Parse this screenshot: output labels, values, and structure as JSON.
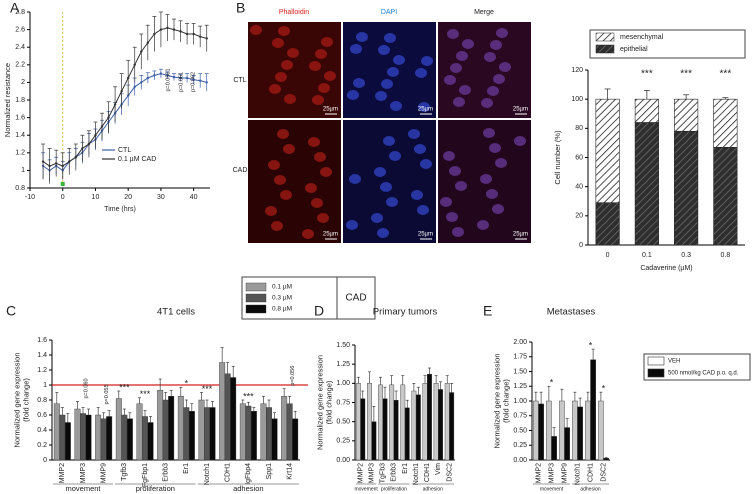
{
  "figure": {
    "panel_labels": [
      "A",
      "B",
      "C",
      "D",
      "E"
    ],
    "microscopy": {
      "channels": [
        "Phalloidin",
        "DAPI",
        "Merge"
      ],
      "conditions": [
        "CTL",
        "CAD"
      ],
      "scale_bars": [
        "25µm",
        "25µm",
        "25µm",
        "25µm",
        "25µm",
        "25µm"
      ]
    }
  },
  "chart_data": [
    {
      "type": "line",
      "xlabel": "Time (hrs)",
      "ylabel": "Normalized resistance",
      "xlim": [
        -10,
        45
      ],
      "ylim": [
        0.8,
        2.8
      ],
      "xticks": [
        -10,
        0,
        10,
        20,
        30,
        40
      ],
      "yticks": [
        0.8,
        1,
        1.2,
        1.4,
        1.6,
        1.8,
        2,
        2.2,
        2.4,
        2.6,
        2.8
      ],
      "x": [
        -6,
        -4,
        -2,
        0,
        2,
        4,
        6,
        8,
        10,
        12,
        14,
        16,
        18,
        20,
        22,
        24,
        26,
        28,
        30,
        32,
        34,
        36,
        38,
        40,
        42,
        44
      ],
      "series": [
        {
          "name": "CTL",
          "color": "#3b5ea8",
          "values": [
            1.05,
            1.0,
            1.05,
            1.0,
            1.1,
            1.15,
            1.2,
            1.3,
            1.35,
            1.45,
            1.55,
            1.65,
            1.75,
            1.85,
            1.95,
            2.0,
            2.05,
            2.08,
            2.1,
            2.08,
            2.06,
            2.05,
            2.05,
            2.03,
            2.02,
            2.0
          ],
          "errors": [
            0.15,
            0.12,
            0.1,
            0.1,
            0.1,
            0.1,
            0.12,
            0.12,
            0.12,
            0.12,
            0.12,
            0.12,
            0.12,
            0.12,
            0.1,
            0.08,
            0.06,
            0.05,
            0.05,
            0.04,
            0.04,
            0.04,
            0.05,
            0.05,
            0.08,
            0.1
          ]
        },
        {
          "name": "0.1 µM CAD",
          "color": "#333333",
          "values": [
            1.1,
            1.05,
            1.08,
            1.05,
            1.1,
            1.15,
            1.25,
            1.3,
            1.4,
            1.5,
            1.6,
            1.75,
            1.9,
            2.05,
            2.2,
            2.35,
            2.45,
            2.55,
            2.6,
            2.62,
            2.6,
            2.58,
            2.55,
            2.55,
            2.52,
            2.5
          ],
          "errors": [
            0.2,
            0.2,
            0.15,
            0.15,
            0.15,
            0.15,
            0.15,
            0.15,
            0.15,
            0.15,
            0.18,
            0.2,
            0.2,
            0.2,
            0.2,
            0.2,
            0.2,
            0.2,
            0.2,
            0.15,
            0.12,
            0.12,
            0.12,
            0.12,
            0.12,
            0.15
          ]
        }
      ],
      "annotations": [
        "p=0.0501",
        "p=0.061",
        "p=0.062"
      ]
    },
    {
      "type": "stacked_bar",
      "xlabel": "Cadaverine (µM)",
      "ylabel": "Cell number (%)",
      "categories": [
        "0",
        "0.1",
        "0.3",
        "0.8"
      ],
      "ylim": [
        0,
        120
      ],
      "yticks": [
        0,
        20,
        40,
        60,
        80,
        100,
        120
      ],
      "series": [
        {
          "name": "epithelial",
          "color": "#2e2e2e",
          "hatch_color": "#6a6a6a",
          "values": [
            29,
            84,
            78,
            67
          ]
        },
        {
          "name": "mesenchymal",
          "color": "#ffffff",
          "hatch_color": "#222222",
          "values": [
            71,
            16,
            22,
            33
          ],
          "errors": [
            7,
            6,
            3,
            1
          ]
        }
      ],
      "annotations": [
        null,
        "***",
        "***",
        "***"
      ]
    },
    {
      "type": "bar",
      "title": "4T1 cells",
      "ylabel": [
        "Normalized gene expression",
        "(fold change)"
      ],
      "ylim": [
        0,
        1.6
      ],
      "yticks": [
        0,
        0.2,
        0.4,
        0.6,
        0.8,
        1,
        1.2,
        1.4,
        1.6
      ],
      "reference_line": 1,
      "reference_color": "#d0211c",
      "legend_title": "CAD",
      "groups": [
        {
          "name": "movement",
          "categories": [
            "MMP2",
            "MMP3",
            "MMP9"
          ],
          "annotations": [
            null,
            "p=0.060",
            "p=0.055"
          ]
        },
        {
          "name": "proliferation",
          "categories": [
            "Tgfb3",
            "FgFbp1",
            "Erbb3",
            "Er1"
          ],
          "annotations": [
            "***",
            "***",
            null,
            "*"
          ]
        },
        {
          "name": "adhesion",
          "categories": [
            "Notch1",
            "CDH1",
            "IgFbp4",
            "Spp1",
            "Krt14"
          ],
          "annotations": [
            "***",
            null,
            "***",
            null,
            "p=0.056"
          ]
        }
      ],
      "series": [
        {
          "name": "0.1 µM",
          "color": "#9a9a9a",
          "values": [
            0.75,
            0.68,
            0.6,
            0.82,
            0.75,
            0.93,
            0.85,
            0.8,
            1.3,
            0.75,
            0.75,
            0.85
          ],
          "errors": [
            0.15,
            0.1,
            0.1,
            0.1,
            0.08,
            0.15,
            0.12,
            0.1,
            0.2,
            0.05,
            0.1,
            0.1
          ]
        },
        {
          "name": "0.3 µM",
          "color": "#555555",
          "values": [
            0.6,
            0.62,
            0.55,
            0.6,
            0.58,
            0.8,
            0.7,
            0.7,
            1.15,
            0.72,
            0.7,
            0.75
          ],
          "errors": [
            0.1,
            0.08,
            0.08,
            0.08,
            0.08,
            0.1,
            0.1,
            0.1,
            0.15,
            0.05,
            0.1,
            0.1
          ]
        },
        {
          "name": "0.8 µM",
          "color": "#0a0a0a",
          "values": [
            0.5,
            0.6,
            0.58,
            0.55,
            0.5,
            0.85,
            0.65,
            0.7,
            1.1,
            0.65,
            0.55,
            0.55
          ],
          "errors": [
            0.12,
            0.08,
            0.08,
            0.08,
            0.08,
            0.08,
            0.1,
            0.08,
            0.15,
            0.05,
            0.08,
            0.1
          ]
        }
      ]
    },
    {
      "type": "bar",
      "title": "Primary tumors",
      "ylabel": [
        "Normalized gene expression",
        "(fold change)"
      ],
      "ylim": [
        0,
        1.5
      ],
      "yticks": [
        {
          "value": 0,
          "label": "0.00"
        },
        {
          "value": 0.25,
          "label": "0.25"
        },
        {
          "value": 0.5,
          "label": "0.50"
        },
        {
          "value": 0.75,
          "label": "0.75"
        },
        {
          "value": 1,
          "label": "1.00"
        },
        {
          "value": 1.25,
          "label": "1.25"
        },
        {
          "value": 1.5,
          "label": "1.50"
        }
      ],
      "groups": [
        {
          "name": "movement",
          "categories": [
            "MMP2",
            "MMP3"
          ]
        },
        {
          "name": "proliferation",
          "categories": [
            "TgFb3",
            "Erbb3",
            "Er1"
          ]
        },
        {
          "name": "adhesion",
          "categories": [
            "Notch1",
            "CDH1",
            "Vim",
            "DSC2"
          ]
        }
      ],
      "series": [
        {
          "color": "#c8c8c8",
          "values": [
            1.0,
            1.0,
            0.98,
            0.98,
            0.98,
            0.9,
            1.0,
            1.0,
            1.0
          ],
          "errors": [
            0.08,
            0.15,
            0.1,
            0.12,
            0.12,
            0.1,
            0.1,
            0.1,
            0.1
          ]
        },
        {
          "color": "#0a0a0a",
          "values": [
            0.8,
            0.5,
            0.8,
            0.78,
            0.68,
            0.85,
            1.12,
            0.92,
            0.88
          ],
          "errors": [
            0.1,
            0.2,
            0.15,
            0.12,
            0.1,
            0.1,
            0.08,
            0.1,
            0.12
          ]
        }
      ]
    },
    {
      "type": "bar",
      "title": "Metastases",
      "ylabel": [
        "Normalized gene expression",
        "(fold change)"
      ],
      "ylim": [
        0,
        2
      ],
      "yticks": [
        {
          "value": 0,
          "label": "0.00"
        },
        {
          "value": 0.25,
          "label": "0.25"
        },
        {
          "value": 0.5,
          "label": "0.50"
        },
        {
          "value": 0.75,
          "label": "0.75"
        },
        {
          "value": 1,
          "label": "1.00"
        },
        {
          "value": 1.25,
          "label": "1.25"
        },
        {
          "value": 1.5,
          "label": "1.50"
        },
        {
          "value": 1.75,
          "label": "1.75"
        },
        {
          "value": 2,
          "label": "2.00"
        }
      ],
      "groups": [
        {
          "name": "movement",
          "categories": [
            "MMP2",
            "MMP3",
            "MMP9"
          ],
          "annotations": [
            null,
            "*",
            null
          ]
        },
        {
          "name": "adhesion",
          "categories": [
            "Notch1",
            "CDH1",
            "DSC2"
          ],
          "annotations": [
            null,
            "*",
            "*"
          ]
        }
      ],
      "series": [
        {
          "name": "VEH",
          "color": "#c8c8c8",
          "values": [
            1.0,
            1.0,
            1.0,
            1.0,
            1.0,
            1.0
          ],
          "errors": [
            0.15,
            0.25,
            0.2,
            0.15,
            0.15,
            0.15
          ]
        },
        {
          "name": "500 nmol/kg CAD p.o. q.d.",
          "color": "#0a0a0a",
          "values": [
            0.95,
            0.4,
            0.55,
            0.9,
            1.7,
            0.03
          ],
          "errors": [
            0.2,
            0.15,
            0.15,
            0.15,
            0.18,
            0.01
          ]
        }
      ]
    }
  ]
}
